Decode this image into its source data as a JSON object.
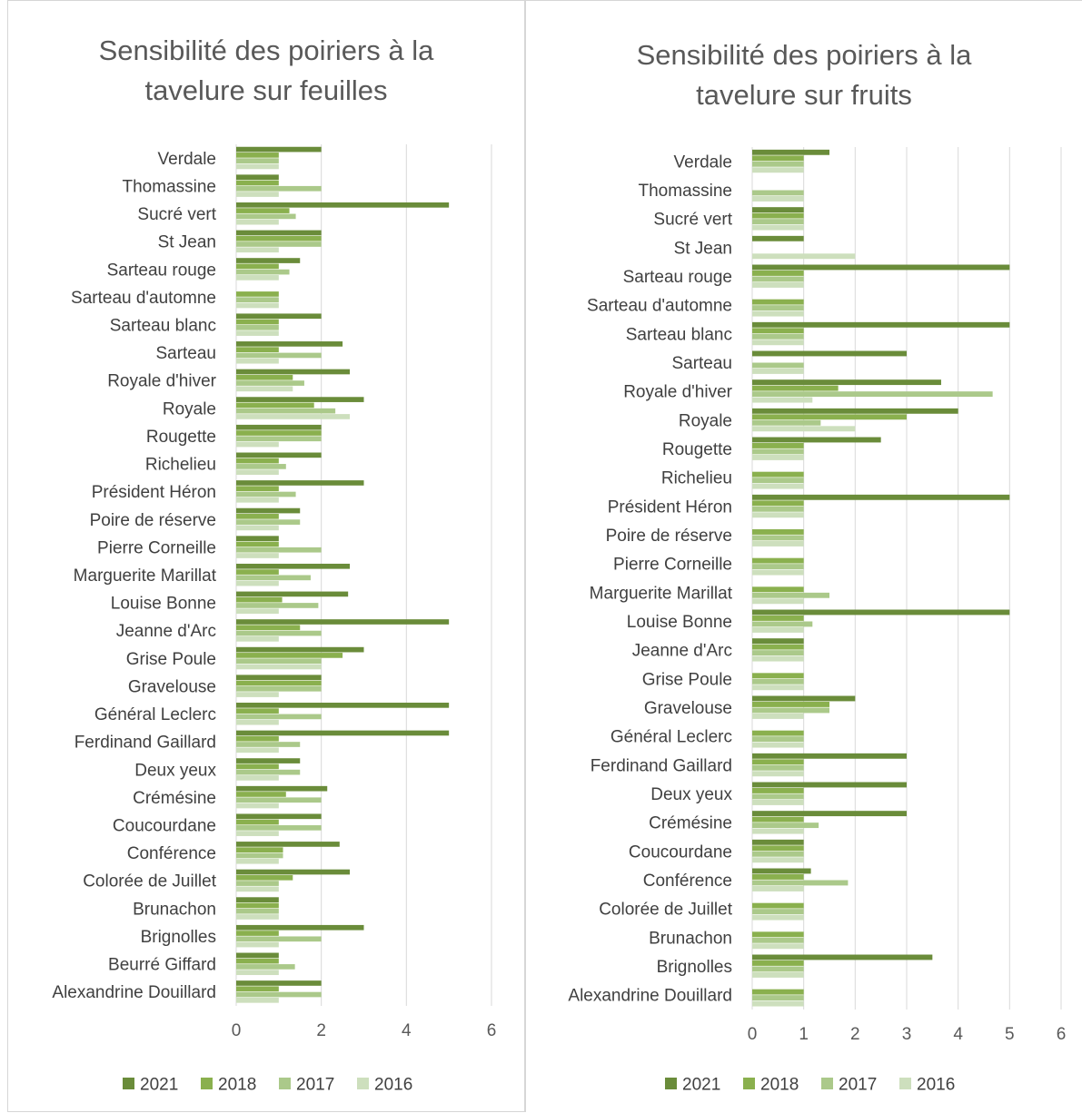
{
  "colors": {
    "2021": "#6a8c3a",
    "2018": "#8ab04e",
    "2017": "#abc98a",
    "2016": "#cddfbd",
    "grid": "#d9d9d9",
    "text": "#404040"
  },
  "chart_data": [
    {
      "type": "bar",
      "orientation": "horizontal",
      "title": "Sensibilité des poiriers à la tavelure sur feuilles",
      "xlim": [
        0,
        6
      ],
      "xticks": [
        0,
        2,
        4,
        6
      ],
      "grid": true,
      "legend_position": "bottom",
      "categories": [
        "Verdale",
        "Thomassine",
        "Sucré vert",
        "St Jean",
        "Sarteau rouge",
        "Sarteau d'automne",
        "Sarteau blanc",
        "Sarteau",
        "Royale d'hiver",
        "Royale",
        "Rougette",
        "Richelieu",
        "Président  Héron",
        "Poire de réserve",
        "Pierre  Corneille",
        "Marguerite Marillat",
        "Louise Bonne",
        "Jeanne d'Arc",
        "Grise Poule",
        "Gravelouse",
        "Général Leclerc",
        "Ferdinand Gaillard",
        "Deux yeux",
        "Crémésine",
        "Coucourdane",
        "Conférence",
        "Colorée de Juillet",
        "Brunachon",
        "Brignolles",
        "Beurré Giffard",
        "Alexandrine Douillard"
      ],
      "series": [
        {
          "name": "2021",
          "values": [
            2,
            1,
            5,
            2,
            1.5,
            null,
            2,
            2.5,
            2.67,
            3,
            2,
            2,
            3,
            1.5,
            1,
            2.67,
            2.63,
            5,
            3,
            2,
            5,
            5,
            1.5,
            2.14,
            2,
            2.43,
            2.67,
            1,
            3,
            1,
            2
          ]
        },
        {
          "name": "2018",
          "values": [
            1,
            1,
            1.25,
            2,
            1,
            1,
            1,
            1,
            1.33,
            1.83,
            2,
            1,
            1,
            1,
            1,
            1,
            1.08,
            1.5,
            2.5,
            2,
            1,
            1,
            1,
            1.17,
            1,
            1.1,
            1.33,
            1,
            1,
            1,
            1
          ]
        },
        {
          "name": "2017",
          "values": [
            1,
            2,
            1.4,
            2,
            1.25,
            1,
            1,
            2,
            1.6,
            2.33,
            2,
            1.17,
            1.4,
            1.5,
            2,
            1.75,
            1.93,
            2,
            2,
            2,
            2,
            1.5,
            1.5,
            2,
            2,
            1.1,
            1,
            1,
            2,
            1.38,
            2
          ]
        },
        {
          "name": "2016",
          "values": [
            1,
            1,
            1,
            1,
            1,
            1,
            1,
            1,
            1.33,
            2.67,
            1,
            1,
            1,
            1,
            1,
            1,
            1,
            1,
            2,
            1,
            1,
            1,
            1,
            1,
            1,
            1,
            1,
            1,
            1,
            1,
            1
          ]
        }
      ]
    },
    {
      "type": "bar",
      "orientation": "horizontal",
      "title": "Sensibilité des poiriers à la tavelure sur fruits",
      "xlim": [
        0,
        6
      ],
      "xticks": [
        0,
        1,
        2,
        3,
        4,
        5,
        6
      ],
      "grid": true,
      "legend_position": "bottom",
      "categories": [
        "Verdale",
        "Thomassine",
        "Sucré vert",
        "St Jean",
        "Sarteau rouge",
        "Sarteau d'automne",
        "Sarteau blanc",
        "Sarteau ",
        "Royale d'hiver",
        "Royale",
        "Rougette",
        "Richelieu",
        "Président  Héron",
        "Poire de réserve",
        "Pierre  Corneille",
        "Marguerite Marillat",
        "Louise Bonne",
        "Jeanne d'Arc",
        "Grise Poule",
        "Gravelouse",
        "Général Leclerc",
        "Ferdinand Gaillard",
        "Deux yeux",
        "Crémésine",
        "Coucourdane",
        "Conférence",
        "Colorée de Juillet",
        "Brunachon",
        "Brignolles",
        "Alexandrine Douillard"
      ],
      "series": [
        {
          "name": "2021",
          "values": [
            1.5,
            null,
            1,
            1,
            5,
            null,
            5,
            3,
            3.67,
            4,
            2.5,
            null,
            5,
            null,
            null,
            null,
            5,
            1,
            null,
            2,
            null,
            3,
            3,
            3,
            1,
            1.14,
            null,
            null,
            3.5,
            null
          ]
        },
        {
          "name": "2018",
          "values": [
            1,
            null,
            1,
            null,
            1,
            1,
            1,
            null,
            1.67,
            3,
            1,
            1,
            1,
            1,
            1,
            1,
            1,
            1,
            1,
            1.5,
            1,
            1,
            1,
            1,
            1,
            1,
            1,
            1,
            1,
            1
          ]
        },
        {
          "name": "2017",
          "values": [
            1,
            1,
            1,
            null,
            1,
            1,
            1,
            1,
            4.67,
            1.33,
            1,
            1,
            1,
            1,
            1,
            1.5,
            1.17,
            1,
            1,
            1.5,
            1,
            1,
            1,
            1.29,
            1,
            1.86,
            1,
            1,
            1,
            1
          ]
        },
        {
          "name": "2016",
          "values": [
            1,
            1,
            1,
            2,
            1,
            1,
            1,
            1,
            1.17,
            2,
            1,
            1,
            1,
            1,
            1,
            1,
            1,
            1,
            1,
            1,
            1,
            1,
            1,
            1,
            1,
            1,
            1,
            1,
            1,
            1
          ]
        }
      ]
    }
  ]
}
